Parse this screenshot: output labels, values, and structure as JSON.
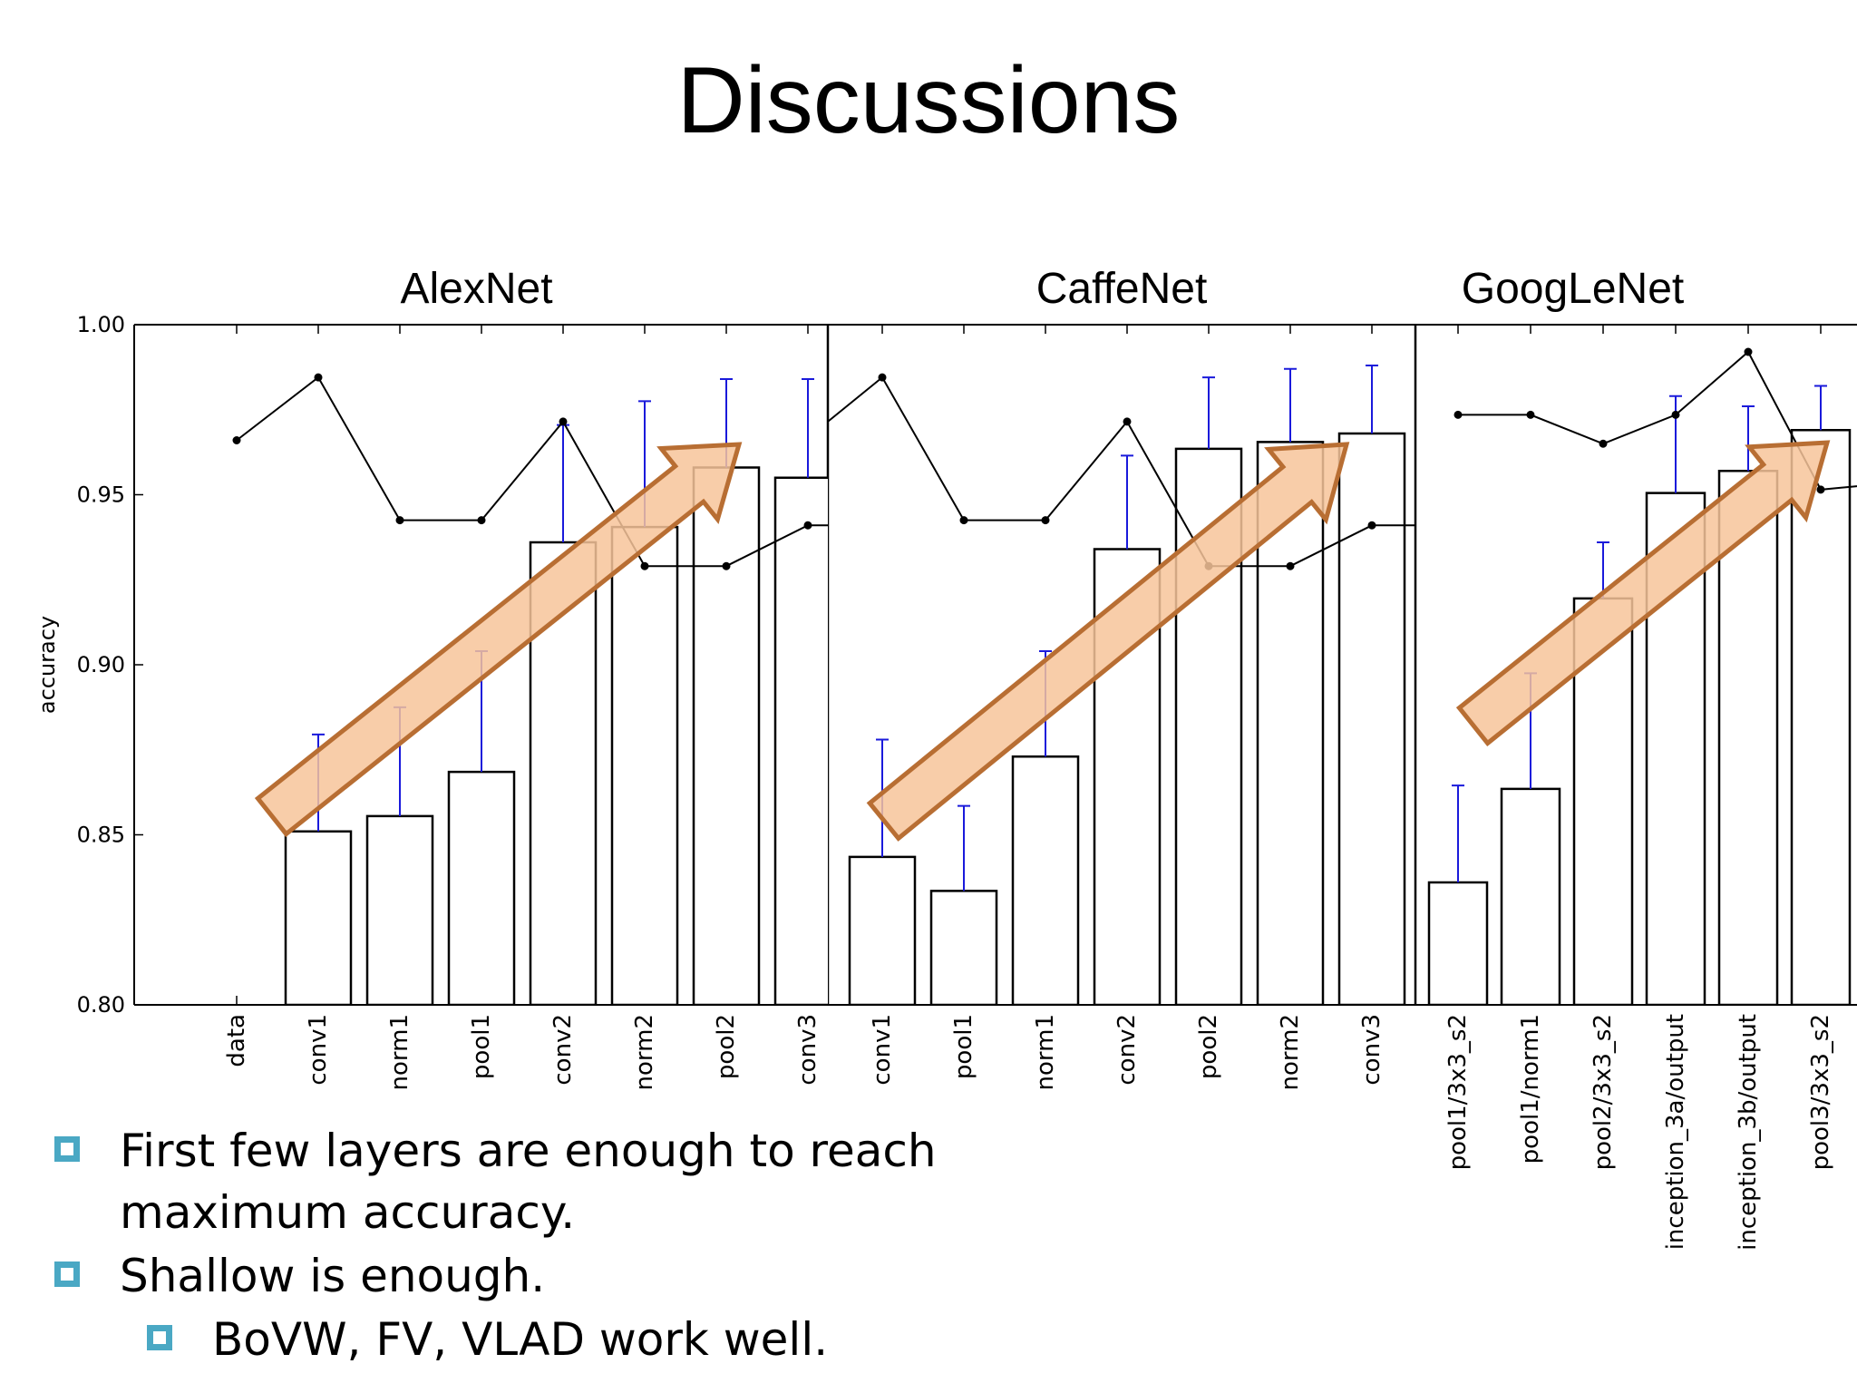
{
  "slide": {
    "title": "Discussions",
    "bullets": [
      {
        "text": "First few layers are enough to reach maximum accuracy.",
        "level": 1
      },
      {
        "text": "Shallow is enough.",
        "level": 1
      },
      {
        "text": "BoVW, FV, VLAD work well.",
        "level": 2
      }
    ],
    "bullet_color": "#4aa8c4",
    "arrow_fill": "#f7c49a",
    "arrow_stroke": "#b86e33"
  },
  "chart_data": {
    "type": "bar",
    "ylabel": "accuracy",
    "ylim": [
      0.8,
      1.0
    ],
    "yticks": [
      "0.80",
      "0.85",
      "0.90",
      "0.95",
      "1.00"
    ],
    "bar_color": "#ffffff",
    "error_color": "#1a1adb",
    "line_color": "#000000",
    "panels": [
      {
        "title": "AlexNet",
        "categories": [
          "data",
          "conv1",
          "norm1",
          "pool1",
          "conv2",
          "norm2",
          "pool2",
          "conv3"
        ],
        "values": [
          null,
          0.851,
          0.8555,
          0.8685,
          0.936,
          0.9405,
          0.958,
          0.955
        ],
        "error_upper": [
          null,
          0.8795,
          0.8875,
          0.904,
          0.9705,
          0.9775,
          0.984,
          0.984
        ],
        "line": [
          0.966,
          0.9845,
          0.9425,
          0.9425,
          0.9715,
          0.929,
          0.929,
          0.941
        ]
      },
      {
        "title": "CaffeNet",
        "categories": [
          "conv1",
          "pool1",
          "norm1",
          "conv2",
          "pool2",
          "norm2",
          "conv3"
        ],
        "values": [
          0.8435,
          0.8335,
          0.873,
          0.934,
          0.9635,
          0.9655,
          0.968
        ],
        "error_upper": [
          0.878,
          0.8585,
          0.904,
          0.9615,
          0.9845,
          0.987,
          0.988
        ],
        "line": [
          0.9845,
          0.9425,
          0.9425,
          0.9715,
          0.929,
          0.929,
          0.941
        ]
      },
      {
        "title": "GoogLeNet",
        "categories": [
          "pool1/3x3_s2",
          "pool1/norm1",
          "pool2/3x3_s2",
          "inception_3a/output",
          "inception_3b/output",
          "pool3/3x3_s2"
        ],
        "values": [
          0.836,
          0.8635,
          0.9195,
          0.9505,
          0.957,
          0.969
        ],
        "error_upper": [
          0.8645,
          0.8975,
          0.936,
          0.979,
          0.976,
          0.982
        ],
        "line": [
          0.9735,
          0.9735,
          0.965,
          0.9735,
          0.992,
          0.9515
        ]
      }
    ]
  }
}
